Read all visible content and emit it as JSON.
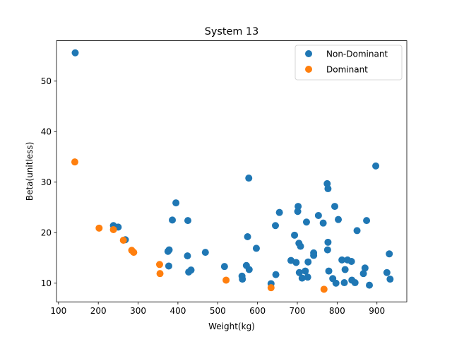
{
  "chart_data": {
    "type": "scatter",
    "title": "System 13",
    "xlabel": "Weight(kg)",
    "ylabel": "Beta(unitless)",
    "xlim": [
      95,
      975
    ],
    "ylim": [
      6.3,
      58.0
    ],
    "xticks": [
      100,
      200,
      300,
      400,
      500,
      600,
      700,
      800,
      900
    ],
    "yticks": [
      10,
      20,
      30,
      40,
      50
    ],
    "grid": false,
    "legend_position": "top-right",
    "series": [
      {
        "name": "Non-Dominant",
        "color": "#1f77b4",
        "points": [
          [
            142,
            55.6
          ],
          [
            238,
            21.4
          ],
          [
            250,
            21.1
          ],
          [
            268,
            18.6
          ],
          [
            375,
            16.3
          ],
          [
            378,
            16.6
          ],
          [
            377,
            13.4
          ],
          [
            386,
            22.5
          ],
          [
            395,
            25.9
          ],
          [
            424,
            15.4
          ],
          [
            425,
            22.4
          ],
          [
            427,
            12.2
          ],
          [
            433,
            12.6
          ],
          [
            469,
            16.1
          ],
          [
            517,
            13.3
          ],
          [
            561,
            11.4
          ],
          [
            562,
            10.8
          ],
          [
            572,
            13.5
          ],
          [
            575,
            19.2
          ],
          [
            578,
            30.8
          ],
          [
            579,
            12.7
          ],
          [
            597,
            16.9
          ],
          [
            634,
            9.9
          ],
          [
            645,
            21.4
          ],
          [
            646,
            11.7
          ],
          [
            655,
            24.0
          ],
          [
            684,
            14.5
          ],
          [
            693,
            19.5
          ],
          [
            697,
            14.1
          ],
          [
            701,
            24.2
          ],
          [
            702,
            25.2
          ],
          [
            704,
            17.9
          ],
          [
            708,
            17.3
          ],
          [
            705,
            12.1
          ],
          [
            712,
            11.0
          ],
          [
            720,
            12.4
          ],
          [
            723,
            22.1
          ],
          [
            726,
            11.2
          ],
          [
            727,
            14.2
          ],
          [
            741,
            16.0
          ],
          [
            741,
            15.5
          ],
          [
            753,
            23.4
          ],
          [
            765,
            21.9
          ],
          [
            775,
            29.7
          ],
          [
            777,
            28.7
          ],
          [
            776,
            16.6
          ],
          [
            777,
            18.1
          ],
          [
            779,
            12.4
          ],
          [
            789,
            10.9
          ],
          [
            794,
            25.2
          ],
          [
            797,
            10.0
          ],
          [
            803,
            22.6
          ],
          [
            812,
            14.6
          ],
          [
            818,
            10.1
          ],
          [
            820,
            12.7
          ],
          [
            826,
            14.6
          ],
          [
            836,
            14.3
          ],
          [
            837,
            10.6
          ],
          [
            845,
            10.1
          ],
          [
            850,
            20.4
          ],
          [
            866,
            11.9
          ],
          [
            870,
            13.0
          ],
          [
            874,
            22.4
          ],
          [
            881,
            9.6
          ],
          [
            897,
            33.2
          ],
          [
            925,
            12.1
          ],
          [
            931,
            15.8
          ],
          [
            933,
            10.8
          ]
        ]
      },
      {
        "name": "Dominant",
        "color": "#ff7f0e",
        "points": [
          [
            141,
            34.0
          ],
          [
            202,
            20.9
          ],
          [
            238,
            20.6
          ],
          [
            263,
            18.5
          ],
          [
            284,
            16.5
          ],
          [
            289,
            16.1
          ],
          [
            354,
            13.7
          ],
          [
            355,
            11.9
          ],
          [
            521,
            10.6
          ],
          [
            634,
            9.1
          ],
          [
            767,
            8.8
          ]
        ]
      }
    ]
  }
}
